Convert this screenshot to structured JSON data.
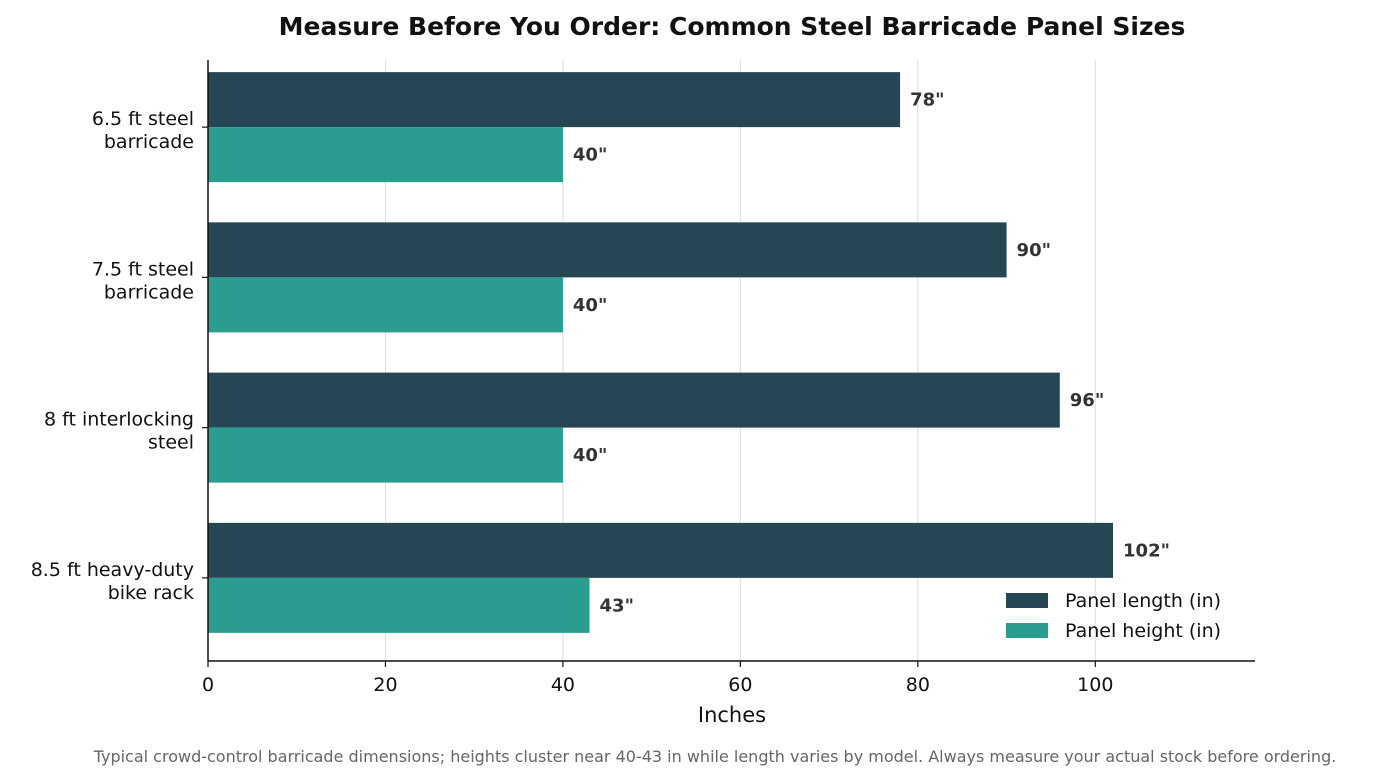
{
  "chart_data": {
    "type": "bar",
    "orientation": "horizontal",
    "title": "Measure Before You Order: Common Steel Barricade Panel Sizes",
    "xlabel": "Inches",
    "ylabel": "",
    "xlim": [
      0,
      118
    ],
    "xticks": [
      0,
      20,
      40,
      60,
      80,
      100
    ],
    "grid": "vertical",
    "legend_position": "bottom-right",
    "categories": [
      [
        "6.5 ft steel",
        "barricade"
      ],
      [
        "7.5 ft steel",
        "barricade"
      ],
      [
        "8 ft interlocking",
        "steel"
      ],
      [
        "8.5 ft heavy-duty",
        "bike rack"
      ]
    ],
    "series": [
      {
        "name": "Panel length (in)",
        "color": "#264653",
        "values": [
          78,
          90,
          96,
          102
        ],
        "labels": [
          "78\"",
          "90\"",
          "96\"",
          "102\""
        ]
      },
      {
        "name": "Panel height (in)",
        "color": "#2a9d8f",
        "values": [
          40,
          40,
          40,
          43
        ],
        "labels": [
          "40\"",
          "40\"",
          "40\"",
          "43\""
        ]
      }
    ],
    "footnote": "Typical crowd-control barricade dimensions; heights cluster near 40-43 in while length varies by model. Always measure your actual stock before ordering."
  }
}
